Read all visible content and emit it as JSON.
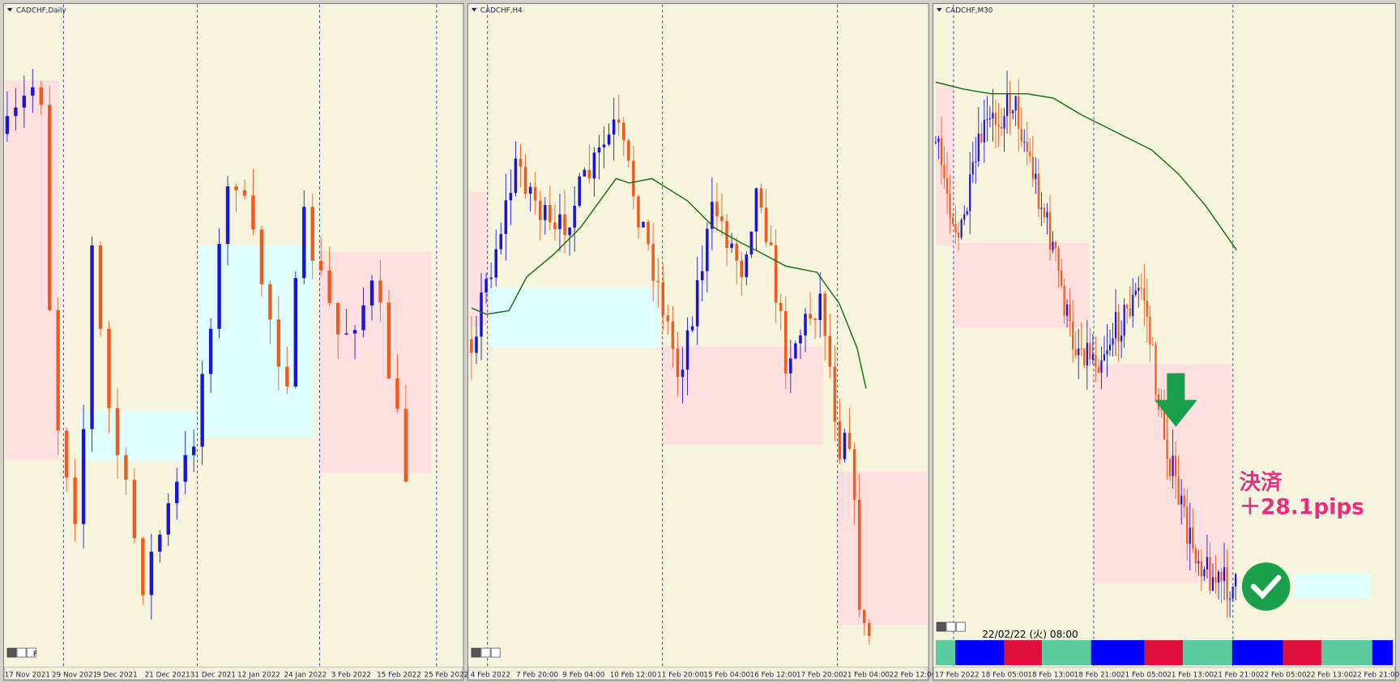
{
  "panels": [
    {
      "title": "CADCHF,Daily",
      "toolbar_label": "F",
      "x_labels": [
        "17 Nov 2021",
        "29 Nov 2021",
        "9 Dec 2021",
        "21 Dec 2021",
        "31 Dec 2021",
        "12 Jan 2022",
        "24 Jan 2022",
        "3 Feb 2022",
        "15 Feb 2022",
        "25 Feb 2022"
      ]
    },
    {
      "title": "CADCHF,H4",
      "x_labels": [
        "4 Feb 2022",
        "7 Feb 20:00",
        "9 Feb 04:00",
        "10 Feb 12:00",
        "11 Feb 20:00",
        "15 Feb 04:00",
        "16 Feb 12:00",
        "17 Feb 20:00",
        "21 Feb 04:00",
        "22 Feb 12:00"
      ]
    },
    {
      "title": "CADCHF,M30",
      "x_labels": [
        "17 Feb 2022",
        "18 Feb 05:00",
        "18 Feb 13:00",
        "18 Feb 21:00",
        "21 Feb 05:00",
        "21 Feb 13:00",
        "21 Feb 21:00",
        "22 Feb 05:00",
        "22 Feb 13:00",
        "22 Feb 21:00"
      ],
      "timestamp": "22/02/22 (火) 08:00",
      "annotation": {
        "line1": "決済",
        "line2": "＋28.1pips"
      }
    }
  ]
}
